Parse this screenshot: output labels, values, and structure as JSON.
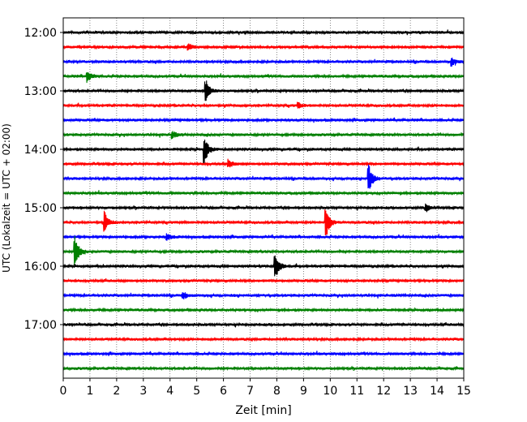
{
  "chart_data": {
    "type": "line",
    "subtype": "helicorder",
    "xlabel": "Zeit  [min]",
    "ylabel": "UTC (Lokalzeit = UTC + 02:00)",
    "xlim": [
      0,
      15
    ],
    "x_ticks": [
      "0",
      "1",
      "2",
      "3",
      "4",
      "5",
      "6",
      "7",
      "8",
      "9",
      "10",
      "11",
      "12",
      "13",
      "14",
      "15"
    ],
    "y_tick_labels": [
      "12:00",
      "13:00",
      "14:00",
      "15:00",
      "16:00",
      "17:00"
    ],
    "grid": "vertical dotted at each minute",
    "colors": [
      "#000000",
      "#ff0000",
      "#0000ff",
      "#008000"
    ],
    "row_colors_cycle": [
      "black",
      "red",
      "blue",
      "green"
    ],
    "rows": [
      {
        "start": "12:00",
        "color": "#000000"
      },
      {
        "start": "12:15",
        "color": "#ff0000"
      },
      {
        "start": "12:30",
        "color": "#0000ff"
      },
      {
        "start": "12:45",
        "color": "#008000"
      },
      {
        "start": "13:00",
        "color": "#000000"
      },
      {
        "start": "13:15",
        "color": "#ff0000"
      },
      {
        "start": "13:30",
        "color": "#0000ff"
      },
      {
        "start": "13:45",
        "color": "#008000"
      },
      {
        "start": "14:00",
        "color": "#000000"
      },
      {
        "start": "14:15",
        "color": "#ff0000"
      },
      {
        "start": "14:30",
        "color": "#0000ff"
      },
      {
        "start": "14:45",
        "color": "#008000"
      },
      {
        "start": "15:00",
        "color": "#000000"
      },
      {
        "start": "15:15",
        "color": "#ff0000"
      },
      {
        "start": "15:30",
        "color": "#0000ff"
      },
      {
        "start": "15:45",
        "color": "#008000"
      },
      {
        "start": "16:00",
        "color": "#000000"
      },
      {
        "start": "16:15",
        "color": "#ff0000"
      },
      {
        "start": "16:30",
        "color": "#0000ff"
      },
      {
        "start": "16:45",
        "color": "#008000"
      },
      {
        "start": "17:00",
        "color": "#000000"
      },
      {
        "start": "17:15",
        "color": "#ff0000"
      },
      {
        "start": "17:30",
        "color": "#0000ff"
      },
      {
        "start": "17:45",
        "color": "#008000"
      }
    ],
    "events": [
      {
        "row_start": "12:15",
        "minute": 4.7,
        "amplitude": 0.25
      },
      {
        "row_start": "12:30",
        "minute": 14.55,
        "amplitude": 0.35
      },
      {
        "row_start": "12:45",
        "minute": 0.9,
        "amplitude": 0.5
      },
      {
        "row_start": "13:00",
        "minute": 5.35,
        "amplitude": 1.0
      },
      {
        "row_start": "13:15",
        "minute": 8.8,
        "amplitude": 0.25
      },
      {
        "row_start": "13:45",
        "minute": 4.1,
        "amplitude": 0.3
      },
      {
        "row_start": "14:00",
        "minute": 5.3,
        "amplitude": 1.2
      },
      {
        "row_start": "14:15",
        "minute": 6.2,
        "amplitude": 0.3
      },
      {
        "row_start": "14:30",
        "minute": 11.45,
        "amplitude": 1.2
      },
      {
        "row_start": "15:00",
        "minute": 13.6,
        "amplitude": 0.3
      },
      {
        "row_start": "15:15",
        "minute": 1.55,
        "amplitude": 0.9
      },
      {
        "row_start": "15:15",
        "minute": 9.85,
        "amplitude": 1.3
      },
      {
        "row_start": "15:30",
        "minute": 3.9,
        "amplitude": 0.25
      },
      {
        "row_start": "15:45",
        "minute": 0.45,
        "amplitude": 1.3
      },
      {
        "row_start": "16:00",
        "minute": 7.95,
        "amplitude": 1.15
      },
      {
        "row_start": "16:30",
        "minute": 4.5,
        "amplitude": 0.35
      }
    ]
  }
}
